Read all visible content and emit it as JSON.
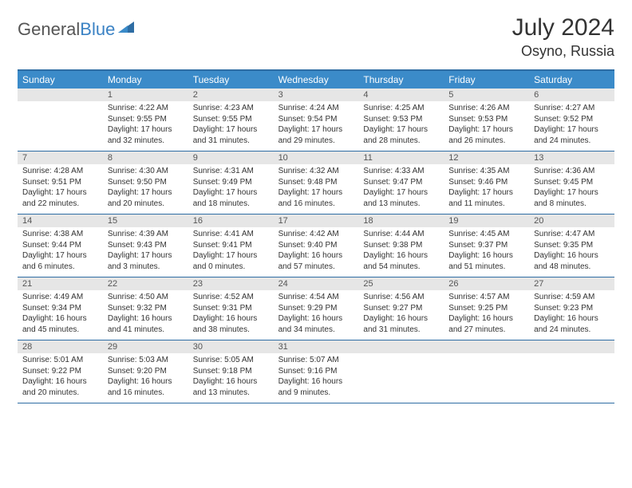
{
  "logo": {
    "general": "General",
    "blue": "Blue"
  },
  "title": "July 2024",
  "location": "Osyno, Russia",
  "dows": [
    "Sunday",
    "Monday",
    "Tuesday",
    "Wednesday",
    "Thursday",
    "Friday",
    "Saturday"
  ],
  "colors": {
    "header_bg": "#3b8bc9",
    "rule": "#2e6da4",
    "daynum_bg": "#e6e6e6",
    "text": "#333333"
  },
  "weeks": [
    [
      {
        "day": "",
        "sunrise": "",
        "sunset": "",
        "daylight1": "",
        "daylight2": ""
      },
      {
        "day": "1",
        "sunrise": "Sunrise: 4:22 AM",
        "sunset": "Sunset: 9:55 PM",
        "daylight1": "Daylight: 17 hours",
        "daylight2": "and 32 minutes."
      },
      {
        "day": "2",
        "sunrise": "Sunrise: 4:23 AM",
        "sunset": "Sunset: 9:55 PM",
        "daylight1": "Daylight: 17 hours",
        "daylight2": "and 31 minutes."
      },
      {
        "day": "3",
        "sunrise": "Sunrise: 4:24 AM",
        "sunset": "Sunset: 9:54 PM",
        "daylight1": "Daylight: 17 hours",
        "daylight2": "and 29 minutes."
      },
      {
        "day": "4",
        "sunrise": "Sunrise: 4:25 AM",
        "sunset": "Sunset: 9:53 PM",
        "daylight1": "Daylight: 17 hours",
        "daylight2": "and 28 minutes."
      },
      {
        "day": "5",
        "sunrise": "Sunrise: 4:26 AM",
        "sunset": "Sunset: 9:53 PM",
        "daylight1": "Daylight: 17 hours",
        "daylight2": "and 26 minutes."
      },
      {
        "day": "6",
        "sunrise": "Sunrise: 4:27 AM",
        "sunset": "Sunset: 9:52 PM",
        "daylight1": "Daylight: 17 hours",
        "daylight2": "and 24 minutes."
      }
    ],
    [
      {
        "day": "7",
        "sunrise": "Sunrise: 4:28 AM",
        "sunset": "Sunset: 9:51 PM",
        "daylight1": "Daylight: 17 hours",
        "daylight2": "and 22 minutes."
      },
      {
        "day": "8",
        "sunrise": "Sunrise: 4:30 AM",
        "sunset": "Sunset: 9:50 PM",
        "daylight1": "Daylight: 17 hours",
        "daylight2": "and 20 minutes."
      },
      {
        "day": "9",
        "sunrise": "Sunrise: 4:31 AM",
        "sunset": "Sunset: 9:49 PM",
        "daylight1": "Daylight: 17 hours",
        "daylight2": "and 18 minutes."
      },
      {
        "day": "10",
        "sunrise": "Sunrise: 4:32 AM",
        "sunset": "Sunset: 9:48 PM",
        "daylight1": "Daylight: 17 hours",
        "daylight2": "and 16 minutes."
      },
      {
        "day": "11",
        "sunrise": "Sunrise: 4:33 AM",
        "sunset": "Sunset: 9:47 PM",
        "daylight1": "Daylight: 17 hours",
        "daylight2": "and 13 minutes."
      },
      {
        "day": "12",
        "sunrise": "Sunrise: 4:35 AM",
        "sunset": "Sunset: 9:46 PM",
        "daylight1": "Daylight: 17 hours",
        "daylight2": "and 11 minutes."
      },
      {
        "day": "13",
        "sunrise": "Sunrise: 4:36 AM",
        "sunset": "Sunset: 9:45 PM",
        "daylight1": "Daylight: 17 hours",
        "daylight2": "and 8 minutes."
      }
    ],
    [
      {
        "day": "14",
        "sunrise": "Sunrise: 4:38 AM",
        "sunset": "Sunset: 9:44 PM",
        "daylight1": "Daylight: 17 hours",
        "daylight2": "and 6 minutes."
      },
      {
        "day": "15",
        "sunrise": "Sunrise: 4:39 AM",
        "sunset": "Sunset: 9:43 PM",
        "daylight1": "Daylight: 17 hours",
        "daylight2": "and 3 minutes."
      },
      {
        "day": "16",
        "sunrise": "Sunrise: 4:41 AM",
        "sunset": "Sunset: 9:41 PM",
        "daylight1": "Daylight: 17 hours",
        "daylight2": "and 0 minutes."
      },
      {
        "day": "17",
        "sunrise": "Sunrise: 4:42 AM",
        "sunset": "Sunset: 9:40 PM",
        "daylight1": "Daylight: 16 hours",
        "daylight2": "and 57 minutes."
      },
      {
        "day": "18",
        "sunrise": "Sunrise: 4:44 AM",
        "sunset": "Sunset: 9:38 PM",
        "daylight1": "Daylight: 16 hours",
        "daylight2": "and 54 minutes."
      },
      {
        "day": "19",
        "sunrise": "Sunrise: 4:45 AM",
        "sunset": "Sunset: 9:37 PM",
        "daylight1": "Daylight: 16 hours",
        "daylight2": "and 51 minutes."
      },
      {
        "day": "20",
        "sunrise": "Sunrise: 4:47 AM",
        "sunset": "Sunset: 9:35 PM",
        "daylight1": "Daylight: 16 hours",
        "daylight2": "and 48 minutes."
      }
    ],
    [
      {
        "day": "21",
        "sunrise": "Sunrise: 4:49 AM",
        "sunset": "Sunset: 9:34 PM",
        "daylight1": "Daylight: 16 hours",
        "daylight2": "and 45 minutes."
      },
      {
        "day": "22",
        "sunrise": "Sunrise: 4:50 AM",
        "sunset": "Sunset: 9:32 PM",
        "daylight1": "Daylight: 16 hours",
        "daylight2": "and 41 minutes."
      },
      {
        "day": "23",
        "sunrise": "Sunrise: 4:52 AM",
        "sunset": "Sunset: 9:31 PM",
        "daylight1": "Daylight: 16 hours",
        "daylight2": "and 38 minutes."
      },
      {
        "day": "24",
        "sunrise": "Sunrise: 4:54 AM",
        "sunset": "Sunset: 9:29 PM",
        "daylight1": "Daylight: 16 hours",
        "daylight2": "and 34 minutes."
      },
      {
        "day": "25",
        "sunrise": "Sunrise: 4:56 AM",
        "sunset": "Sunset: 9:27 PM",
        "daylight1": "Daylight: 16 hours",
        "daylight2": "and 31 minutes."
      },
      {
        "day": "26",
        "sunrise": "Sunrise: 4:57 AM",
        "sunset": "Sunset: 9:25 PM",
        "daylight1": "Daylight: 16 hours",
        "daylight2": "and 27 minutes."
      },
      {
        "day": "27",
        "sunrise": "Sunrise: 4:59 AM",
        "sunset": "Sunset: 9:23 PM",
        "daylight1": "Daylight: 16 hours",
        "daylight2": "and 24 minutes."
      }
    ],
    [
      {
        "day": "28",
        "sunrise": "Sunrise: 5:01 AM",
        "sunset": "Sunset: 9:22 PM",
        "daylight1": "Daylight: 16 hours",
        "daylight2": "and 20 minutes."
      },
      {
        "day": "29",
        "sunrise": "Sunrise: 5:03 AM",
        "sunset": "Sunset: 9:20 PM",
        "daylight1": "Daylight: 16 hours",
        "daylight2": "and 16 minutes."
      },
      {
        "day": "30",
        "sunrise": "Sunrise: 5:05 AM",
        "sunset": "Sunset: 9:18 PM",
        "daylight1": "Daylight: 16 hours",
        "daylight2": "and 13 minutes."
      },
      {
        "day": "31",
        "sunrise": "Sunrise: 5:07 AM",
        "sunset": "Sunset: 9:16 PM",
        "daylight1": "Daylight: 16 hours",
        "daylight2": "and 9 minutes."
      },
      {
        "day": "",
        "sunrise": "",
        "sunset": "",
        "daylight1": "",
        "daylight2": ""
      },
      {
        "day": "",
        "sunrise": "",
        "sunset": "",
        "daylight1": "",
        "daylight2": ""
      },
      {
        "day": "",
        "sunrise": "",
        "sunset": "",
        "daylight1": "",
        "daylight2": ""
      }
    ]
  ]
}
